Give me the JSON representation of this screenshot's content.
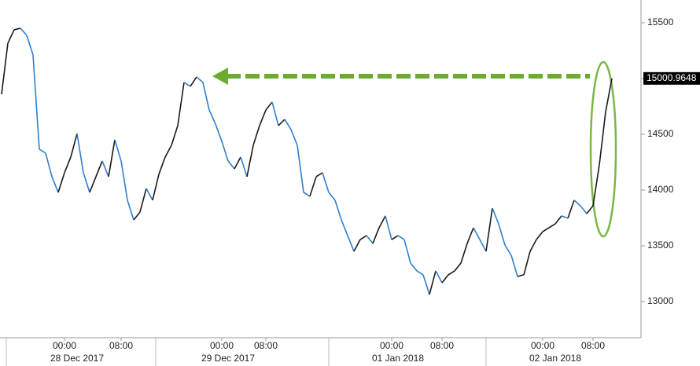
{
  "chart_data": {
    "type": "line",
    "values": [
      14859,
      15317,
      15437,
      15451,
      15387,
      15211,
      14366,
      14331,
      14120,
      13979,
      14155,
      14296,
      14507,
      14155,
      13979,
      14120,
      14261,
      14120,
      14451,
      14261,
      13909,
      13732,
      13803,
      14014,
      13909,
      14141,
      14296,
      14401,
      14578,
      14965,
      14930,
      15014,
      14965,
      14718,
      14592,
      14437,
      14261,
      14190,
      14296,
      14120,
      14401,
      14578,
      14718,
      14789,
      14578,
      14634,
      14542,
      14401,
      13979,
      13944,
      14120,
      14155,
      13979,
      13909,
      13732,
      13592,
      13451,
      13556,
      13592,
      13521,
      13662,
      13768,
      13556,
      13592,
      13556,
      13345,
      13275,
      13240,
      13064,
      13275,
      13169,
      13240,
      13275,
      13345,
      13521,
      13662,
      13556,
      13451,
      13838,
      13697,
      13507,
      13415,
      13225,
      13240,
      13451,
      13556,
      13627,
      13662,
      13697,
      13768,
      13747,
      13909,
      13859,
      13789,
      13859,
      14225,
      14700,
      15000.9648
    ],
    "categories": [
      null,
      null,
      null,
      null,
      null,
      null,
      null,
      null,
      null,
      null,
      "00:00",
      null,
      null,
      null,
      null,
      null,
      null,
      null,
      null,
      "08:00",
      null,
      null,
      null,
      null,
      null,
      null,
      null,
      null,
      null,
      null,
      null,
      null,
      null,
      null,
      null,
      "00:00",
      null,
      null,
      null,
      null,
      null,
      null,
      "08:00",
      null,
      null,
      null,
      null,
      null,
      null,
      null,
      null,
      null,
      null,
      null,
      null,
      null,
      null,
      null,
      null,
      null,
      null,
      null,
      "00:00",
      null,
      null,
      null,
      null,
      null,
      null,
      null,
      "08:00",
      null,
      null,
      null,
      null,
      null,
      null,
      null,
      null,
      null,
      null,
      null,
      null,
      null,
      null,
      null,
      "00:00",
      null,
      null,
      null,
      null,
      null,
      null,
      null,
      "08:00",
      null,
      null,
      null
    ],
    "date_categories": [
      null,
      null,
      null,
      null,
      null,
      null,
      null,
      null,
      null,
      null,
      null,
      null,
      "28 Dec 2017",
      null,
      null,
      null,
      null,
      null,
      null,
      null,
      null,
      null,
      null,
      null,
      null,
      null,
      null,
      null,
      null,
      null,
      null,
      null,
      null,
      null,
      null,
      null,
      "29 Dec 2017",
      null,
      null,
      null,
      null,
      null,
      null,
      null,
      null,
      null,
      null,
      null,
      null,
      null,
      null,
      null,
      null,
      null,
      null,
      null,
      null,
      null,
      null,
      null,
      null,
      null,
      null,
      "01 Jan 2018",
      null,
      null,
      null,
      null,
      null,
      null,
      null,
      null,
      null,
      null,
      null,
      null,
      null,
      null,
      null,
      null,
      null,
      null,
      null,
      null,
      null,
      null,
      null,
      null,
      "02 Jan 2018",
      null,
      null,
      null,
      null,
      null,
      null,
      null,
      null,
      null
    ],
    "up_color": "#1a1a1a",
    "down_color": "#2f7fd0",
    "ylim": [
      12676,
      15704
    ],
    "yticks": [
      13000,
      13500,
      14000,
      14500,
      15000,
      15500
    ]
  }
}
